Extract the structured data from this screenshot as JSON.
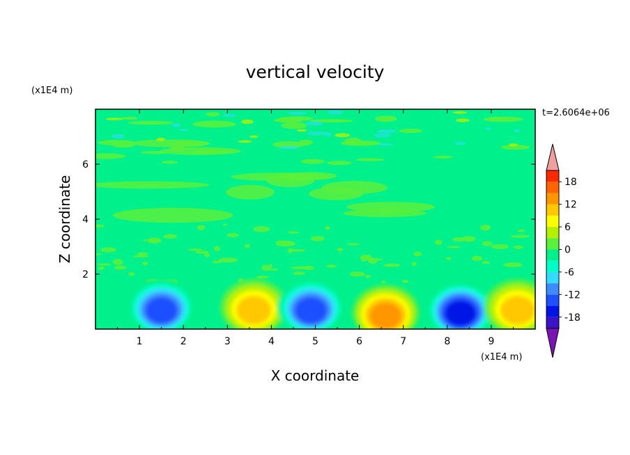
{
  "chart_data": {
    "type": "heatmap",
    "title": "vertical velocity",
    "xlabel": "X coordinate",
    "ylabel": "Z coordinate",
    "x_unit": "(x1E4 m)",
    "y_unit": "(x1E4 m)",
    "time_label": "t=2.6064e+06",
    "xlim": [
      0,
      10
    ],
    "ylim": [
      0,
      8
    ],
    "x_ticks": [
      "1",
      "2",
      "3",
      "4",
      "5",
      "6",
      "7",
      "8",
      "9"
    ],
    "y_ticks": [
      "2",
      "4",
      "6"
    ],
    "colorbar": {
      "levels": [
        -21,
        -18,
        -15,
        -12,
        -9,
        -6,
        -3,
        0,
        3,
        6,
        9,
        12,
        15,
        18,
        21
      ],
      "tick_labels": [
        "18",
        "12",
        "6",
        "0",
        "-6",
        "-12",
        "-18"
      ],
      "colors": [
        "#7a14b4",
        "#3c14c8",
        "#0014e6",
        "#1e50ff",
        "#3c8cff",
        "#32dcff",
        "#00ffc8",
        "#00f08c",
        "#5af03c",
        "#b4f000",
        "#ffff00",
        "#ffc800",
        "#ff9600",
        "#ff6400",
        "#ff2800",
        "#f0a0a0"
      ],
      "extend": "both"
    },
    "features": [
      {
        "kind": "downdraft",
        "x": 1.5,
        "z": 0.8,
        "peak": -15
      },
      {
        "kind": "updraft",
        "x": 3.6,
        "z": 0.8,
        "peak": 12
      },
      {
        "kind": "downdraft",
        "x": 4.9,
        "z": 0.8,
        "peak": -15
      },
      {
        "kind": "updraft",
        "x": 6.6,
        "z": 0.6,
        "peak": 13
      },
      {
        "kind": "downdraft",
        "x": 8.3,
        "z": 0.7,
        "peak": -17
      },
      {
        "kind": "updraft",
        "x": 9.6,
        "z": 0.8,
        "peak": 11
      }
    ],
    "grid": false
  }
}
